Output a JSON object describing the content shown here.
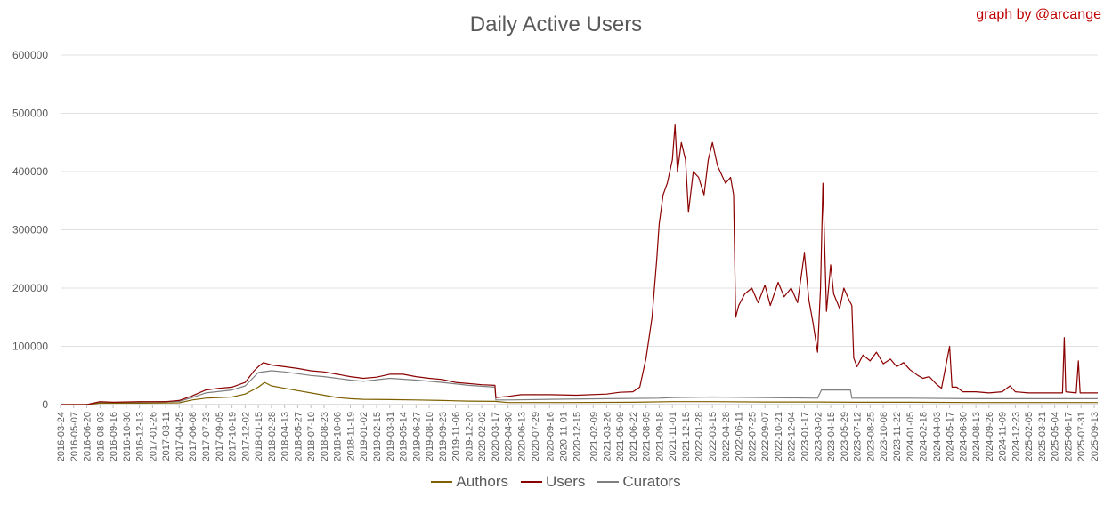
{
  "header": {
    "credit": "graph by @arcange"
  },
  "chart_data": {
    "type": "line",
    "title": "Daily Active Users",
    "xlabel": "",
    "ylabel": "",
    "ylim": [
      0,
      600000
    ],
    "yticks": [
      0,
      100000,
      200000,
      300000,
      400000,
      500000,
      600000
    ],
    "xticks": [
      "2016-03-24",
      "2016-05-07",
      "2016-06-20",
      "2016-08-03",
      "2016-09-16",
      "2016-10-30",
      "2016-12-13",
      "2017-01-26",
      "2017-03-11",
      "2017-04-25",
      "2017-06-08",
      "2017-07-23",
      "2017-09-05",
      "2017-10-19",
      "2017-12-02",
      "2018-01-15",
      "2018-02-28",
      "2018-04-13",
      "2018-05-27",
      "2018-07-10",
      "2018-08-23",
      "2018-10-06",
      "2018-11-19",
      "2019-01-02",
      "2019-02-15",
      "2019-03-31",
      "2019-05-14",
      "2019-06-27",
      "2019-08-10",
      "2019-09-23",
      "2019-11-06",
      "2019-12-20",
      "2020-02-02",
      "2020-03-17",
      "2020-04-30",
      "2020-06-13",
      "2020-07-29",
      "2020-09-16",
      "2020-11-01",
      "2020-12-15",
      "2021-02-09",
      "2021-03-26",
      "2021-05-09",
      "2021-06-22",
      "2021-08-05",
      "2021-09-18",
      "2021-11-01",
      "2021-12-15",
      "2022-01-28",
      "2022-03-15",
      "2022-04-28",
      "2022-06-11",
      "2022-07-25",
      "2022-09-07",
      "2022-10-21",
      "2022-12-04",
      "2023-01-17",
      "2023-03-02",
      "2023-04-15",
      "2023-05-29",
      "2023-07-12",
      "2023-08-25",
      "2023-10-08",
      "2023-11-22",
      "2024-01-05",
      "2024-02-18",
      "2024-04-03",
      "2024-05-17",
      "2024-06-30",
      "2024-08-13",
      "2024-09-26",
      "2024-11-09",
      "2024-12-23",
      "2025-02-05",
      "2025-03-21",
      "2025-05-04",
      "2025-06-17",
      "2025-07-31",
      "2025-09-13"
    ],
    "grid": true,
    "legend_position": "bottom",
    "series": [
      {
        "name": "Authors",
        "color": "#7f6000",
        "points": [
          [
            "2016-03-24",
            0
          ],
          [
            "2016-06-20",
            0
          ],
          [
            "2016-08-03",
            2500
          ],
          [
            "2016-12-13",
            2500
          ],
          [
            "2017-04-25",
            3000
          ],
          [
            "2017-06-08",
            8000
          ],
          [
            "2017-07-23",
            11000
          ],
          [
            "2017-10-19",
            13000
          ],
          [
            "2017-12-02",
            18000
          ],
          [
            "2018-01-15",
            30000
          ],
          [
            "2018-02-05",
            38000
          ],
          [
            "2018-02-28",
            32000
          ],
          [
            "2018-04-13",
            28000
          ],
          [
            "2018-05-27",
            24000
          ],
          [
            "2018-07-10",
            20000
          ],
          [
            "2018-08-23",
            16000
          ],
          [
            "2018-10-06",
            12000
          ],
          [
            "2018-11-19",
            10000
          ],
          [
            "2019-01-02",
            9000
          ],
          [
            "2019-03-31",
            8500
          ],
          [
            "2019-06-27",
            8000
          ],
          [
            "2019-09-23",
            7000
          ],
          [
            "2019-12-20",
            6000
          ],
          [
            "2020-03-17",
            5500
          ],
          [
            "2020-04-30",
            3500
          ],
          [
            "2020-11-01",
            3500
          ],
          [
            "2021-06-22",
            4000
          ],
          [
            "2021-11-01",
            5000
          ],
          [
            "2022-03-15",
            5000
          ],
          [
            "2022-09-07",
            4500
          ],
          [
            "2023-03-02",
            4500
          ],
          [
            "2023-07-12",
            4000
          ],
          [
            "2024-01-05",
            4000
          ],
          [
            "2024-08-13",
            3500
          ],
          [
            "2025-02-05",
            3500
          ],
          [
            "2025-06-17",
            3500
          ],
          [
            "2025-09-25",
            3500
          ]
        ]
      },
      {
        "name": "Users",
        "color": "#8b0000",
        "points": [
          [
            "2016-03-24",
            0
          ],
          [
            "2016-06-20",
            0
          ],
          [
            "2016-08-03",
            5000
          ],
          [
            "2016-09-16",
            4000
          ],
          [
            "2016-12-13",
            5000
          ],
          [
            "2017-03-11",
            5000
          ],
          [
            "2017-04-25",
            7000
          ],
          [
            "2017-06-08",
            15000
          ],
          [
            "2017-07-23",
            25000
          ],
          [
            "2017-09-05",
            28000
          ],
          [
            "2017-10-19",
            30000
          ],
          [
            "2017-12-02",
            38000
          ],
          [
            "2018-01-01",
            58000
          ],
          [
            "2018-01-15",
            65000
          ],
          [
            "2018-02-01",
            72000
          ],
          [
            "2018-02-28",
            68000
          ],
          [
            "2018-04-13",
            65000
          ],
          [
            "2018-05-27",
            62000
          ],
          [
            "2018-07-10",
            58000
          ],
          [
            "2018-08-23",
            56000
          ],
          [
            "2018-10-06",
            52000
          ],
          [
            "2018-11-19",
            48000
          ],
          [
            "2019-01-02",
            45000
          ],
          [
            "2019-02-15",
            47000
          ],
          [
            "2019-03-31",
            52000
          ],
          [
            "2019-05-14",
            52000
          ],
          [
            "2019-06-27",
            48000
          ],
          [
            "2019-08-10",
            45000
          ],
          [
            "2019-09-23",
            43000
          ],
          [
            "2019-11-06",
            38000
          ],
          [
            "2019-12-20",
            36000
          ],
          [
            "2020-02-02",
            34000
          ],
          [
            "2020-03-17",
            33000
          ],
          [
            "2020-03-20",
            12000
          ],
          [
            "2020-04-30",
            14000
          ],
          [
            "2020-06-13",
            17000
          ],
          [
            "2020-09-16",
            17000
          ],
          [
            "2020-12-15",
            16000
          ],
          [
            "2021-03-26",
            18000
          ],
          [
            "2021-05-09",
            21000
          ],
          [
            "2021-06-22",
            22000
          ],
          [
            "2021-07-15",
            30000
          ],
          [
            "2021-08-05",
            80000
          ],
          [
            "2021-08-25",
            150000
          ],
          [
            "2021-09-10",
            250000
          ],
          [
            "2021-09-18",
            310000
          ],
          [
            "2021-10-01",
            360000
          ],
          [
            "2021-10-15",
            380000
          ],
          [
            "2021-11-01",
            420000
          ],
          [
            "2021-11-10",
            480000
          ],
          [
            "2021-11-18",
            400000
          ],
          [
            "2021-12-01",
            450000
          ],
          [
            "2021-12-15",
            420000
          ],
          [
            "2021-12-25",
            330000
          ],
          [
            "2022-01-10",
            400000
          ],
          [
            "2022-01-28",
            390000
          ],
          [
            "2022-02-15",
            360000
          ],
          [
            "2022-03-01",
            420000
          ],
          [
            "2022-03-15",
            450000
          ],
          [
            "2022-04-01",
            410000
          ],
          [
            "2022-04-28",
            380000
          ],
          [
            "2022-05-15",
            390000
          ],
          [
            "2022-05-25",
            360000
          ],
          [
            "2022-06-01",
            150000
          ],
          [
            "2022-06-11",
            170000
          ],
          [
            "2022-07-01",
            190000
          ],
          [
            "2022-07-25",
            200000
          ],
          [
            "2022-08-15",
            175000
          ],
          [
            "2022-09-07",
            205000
          ],
          [
            "2022-09-25",
            170000
          ],
          [
            "2022-10-21",
            210000
          ],
          [
            "2022-11-10",
            185000
          ],
          [
            "2022-12-04",
            200000
          ],
          [
            "2022-12-25",
            175000
          ],
          [
            "2023-01-17",
            260000
          ],
          [
            "2023-02-01",
            180000
          ],
          [
            "2023-02-15",
            140000
          ],
          [
            "2023-03-02",
            90000
          ],
          [
            "2023-03-12",
            200000
          ],
          [
            "2023-03-20",
            380000
          ],
          [
            "2023-04-01",
            160000
          ],
          [
            "2023-04-15",
            240000
          ],
          [
            "2023-04-25",
            190000
          ],
          [
            "2023-05-15",
            165000
          ],
          [
            "2023-05-29",
            200000
          ],
          [
            "2023-06-15",
            180000
          ],
          [
            "2023-06-25",
            170000
          ],
          [
            "2023-07-01",
            80000
          ],
          [
            "2023-07-12",
            65000
          ],
          [
            "2023-08-01",
            85000
          ],
          [
            "2023-08-25",
            75000
          ],
          [
            "2023-09-15",
            90000
          ],
          [
            "2023-10-08",
            70000
          ],
          [
            "2023-11-01",
            78000
          ],
          [
            "2023-11-22",
            65000
          ],
          [
            "2023-12-15",
            72000
          ],
          [
            "2024-01-05",
            60000
          ],
          [
            "2024-02-01",
            50000
          ],
          [
            "2024-02-18",
            45000
          ],
          [
            "2024-03-10",
            48000
          ],
          [
            "2024-04-03",
            35000
          ],
          [
            "2024-04-20",
            28000
          ],
          [
            "2024-05-17",
            100000
          ],
          [
            "2024-05-25",
            30000
          ],
          [
            "2024-06-10",
            30000
          ],
          [
            "2024-06-30",
            22000
          ],
          [
            "2024-08-13",
            22000
          ],
          [
            "2024-09-26",
            20000
          ],
          [
            "2024-11-09",
            22000
          ],
          [
            "2024-12-05",
            32000
          ],
          [
            "2024-12-23",
            22000
          ],
          [
            "2025-02-05",
            20000
          ],
          [
            "2025-03-21",
            20000
          ],
          [
            "2025-05-04",
            20000
          ],
          [
            "2025-05-30",
            20000
          ],
          [
            "2025-06-05",
            115000
          ],
          [
            "2025-06-10",
            22000
          ],
          [
            "2025-07-15",
            20000
          ],
          [
            "2025-07-22",
            75000
          ],
          [
            "2025-07-28",
            20000
          ],
          [
            "2025-09-13",
            20000
          ],
          [
            "2025-09-25",
            20000
          ]
        ]
      },
      {
        "name": "Curators",
        "color": "#7f7f7f",
        "points": [
          [
            "2016-03-24",
            0
          ],
          [
            "2016-06-20",
            0
          ],
          [
            "2016-08-03",
            3500
          ],
          [
            "2016-12-13",
            4000
          ],
          [
            "2017-04-25",
            5500
          ],
          [
            "2017-06-08",
            12000
          ],
          [
            "2017-07-23",
            20000
          ],
          [
            "2017-10-19",
            25000
          ],
          [
            "2017-12-02",
            32000
          ],
          [
            "2018-01-15",
            55000
          ],
          [
            "2018-02-28",
            58000
          ],
          [
            "2018-04-13",
            56000
          ],
          [
            "2018-05-27",
            53000
          ],
          [
            "2018-07-10",
            50000
          ],
          [
            "2018-08-23",
            48000
          ],
          [
            "2018-10-06",
            45000
          ],
          [
            "2018-11-19",
            42000
          ],
          [
            "2019-01-02",
            40000
          ],
          [
            "2019-03-31",
            45000
          ],
          [
            "2019-06-27",
            42000
          ],
          [
            "2019-09-23",
            38000
          ],
          [
            "2019-12-20",
            33000
          ],
          [
            "2020-03-17",
            30000
          ],
          [
            "2020-03-20",
            8000
          ],
          [
            "2020-04-30",
            8000
          ],
          [
            "2020-09-16",
            9000
          ],
          [
            "2021-03-26",
            10000
          ],
          [
            "2021-09-18",
            11000
          ],
          [
            "2021-11-01",
            12000
          ],
          [
            "2022-03-15",
            13000
          ],
          [
            "2022-09-07",
            12000
          ],
          [
            "2023-03-02",
            11000
          ],
          [
            "2023-03-15",
            25000
          ],
          [
            "2023-06-20",
            25000
          ],
          [
            "2023-06-25",
            11000
          ],
          [
            "2024-01-05",
            11000
          ],
          [
            "2024-08-13",
            10000
          ],
          [
            "2025-02-05",
            10000
          ],
          [
            "2025-06-17",
            10000
          ],
          [
            "2025-09-25",
            10000
          ]
        ]
      }
    ]
  }
}
